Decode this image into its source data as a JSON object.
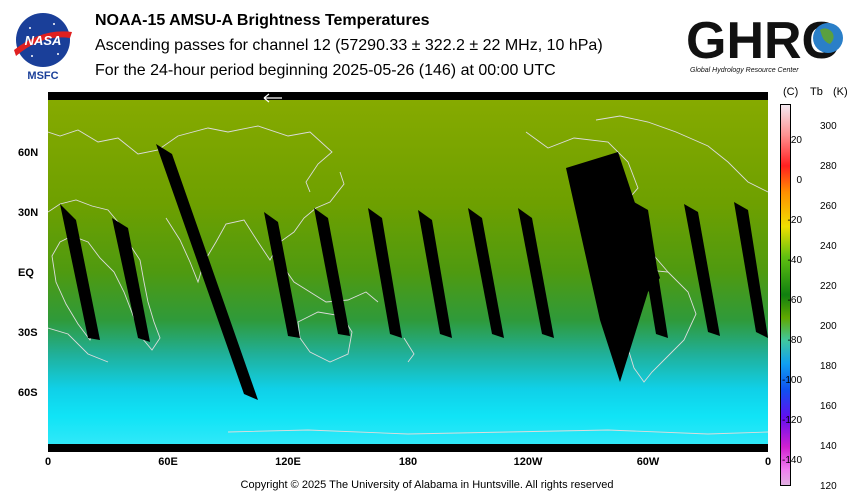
{
  "header": {
    "nasa_logo_text": "NASA",
    "nasa_center": "MSFC",
    "title_line1": "NOAA-15 AMSU-A Brightness Temperatures",
    "title_line2": "Ascending passes for channel 12 (57290.33 ± 322.2 ± 22 MHz, 10 hPa)",
    "title_line3": "For the 24-hour period beginning 2025-05-26 (146) at 00:00 UTC",
    "ghrc_logo_text": "GHRC",
    "ghrc_logo_subtitle": "Global Hydrology Resource Center"
  },
  "map": {
    "lat_labels": [
      "60N",
      "30N",
      "EQ",
      "30S",
      "60S"
    ],
    "lon_labels": [
      "0",
      "60E",
      "120E",
      "180",
      "120W",
      "60W",
      "0"
    ],
    "colors": {
      "north_green": "#7fa800",
      "tropics_green": "#4f9a10",
      "south_cyan": "#10d8f0",
      "no_data": "#000000",
      "coastline": "#d8d8d8"
    }
  },
  "colorbar": {
    "header_c": "(C)",
    "header_tb": "Tb",
    "header_k": "(K)",
    "celsius_ticks": [
      "20",
      "0",
      "-20",
      "-40",
      "-60",
      "-80",
      "-100",
      "-120",
      "-140"
    ],
    "kelvin_ticks": [
      "300",
      "280",
      "260",
      "240",
      "220",
      "200",
      "180",
      "160",
      "140",
      "120"
    ],
    "kelvin_range": [
      120,
      310
    ]
  },
  "footer": {
    "copyright": "Copyright © 2025 The University of Alabama in Huntsville.  All rights reserved"
  }
}
